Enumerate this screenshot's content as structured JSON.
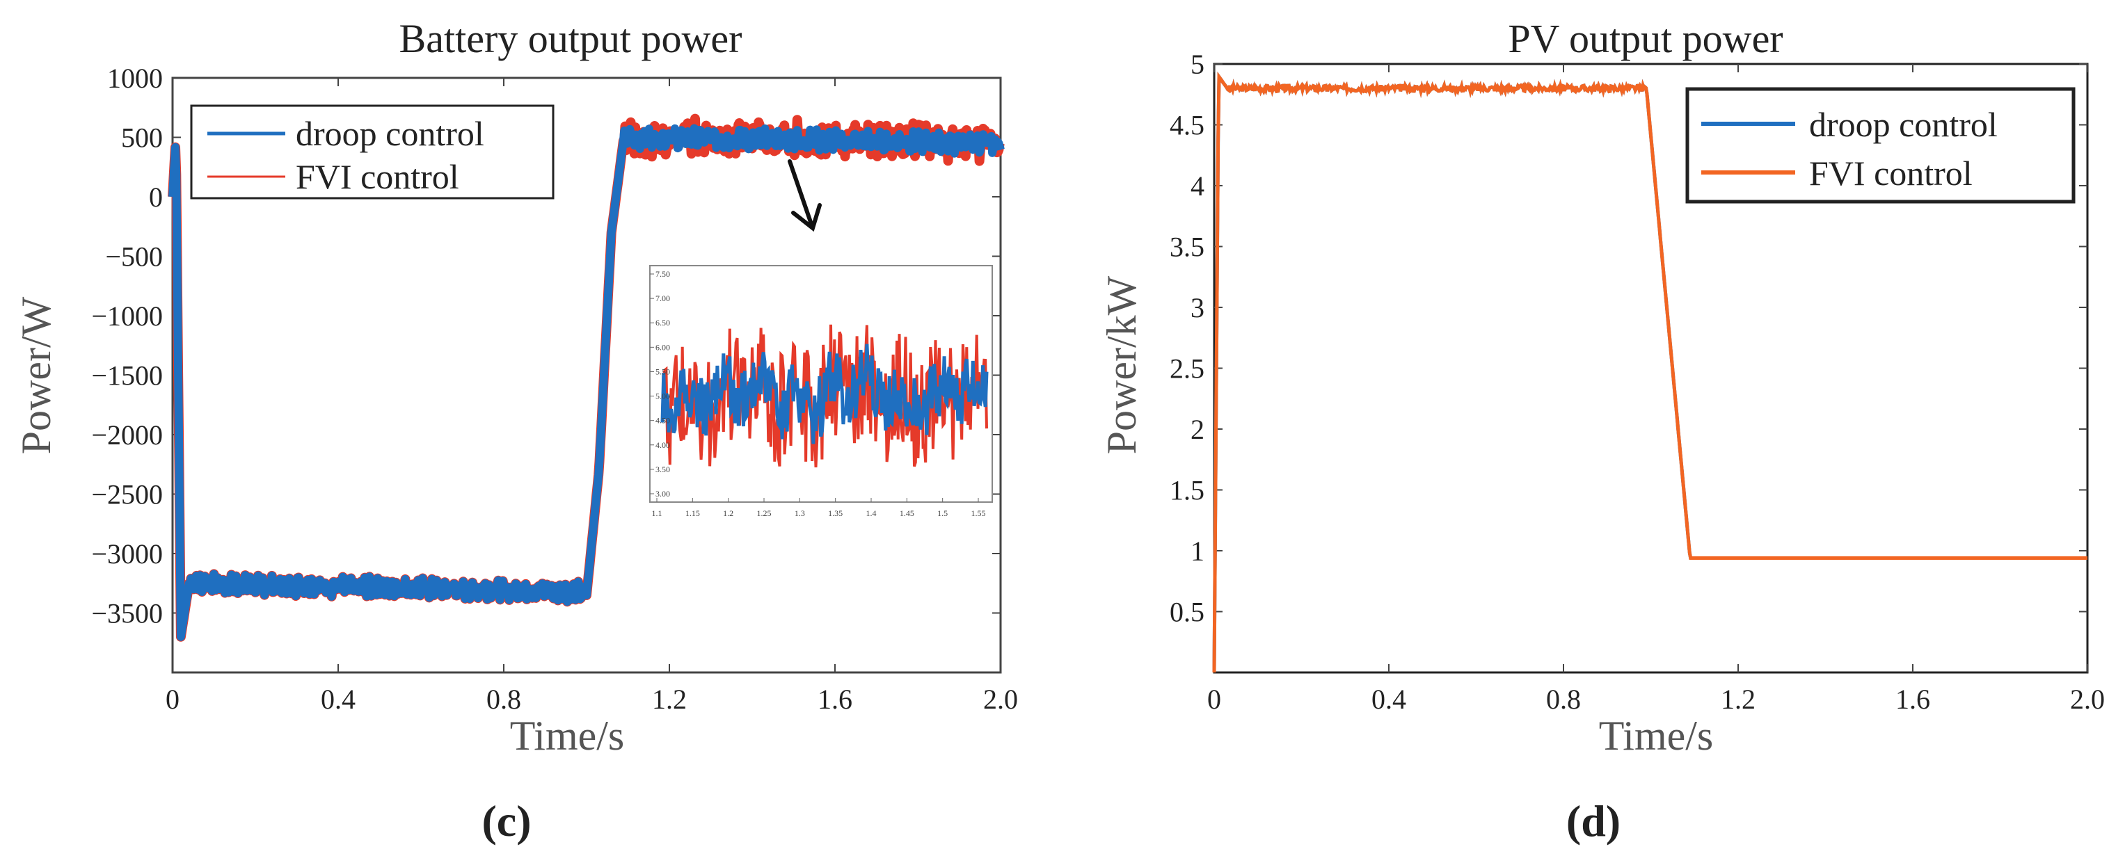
{
  "chart_data": [
    {
      "id": "c",
      "type": "line",
      "caption": "(c)",
      "caption_letter": "c",
      "title": "Battery output power",
      "xlabel": "Time/s",
      "ylabel": "Power/W",
      "xlim": [
        0,
        2.0
      ],
      "ylim": [
        -4000,
        1000
      ],
      "xticks": [
        0,
        0.4,
        0.8,
        1.2,
        1.6,
        2.0
      ],
      "xtick_labels": [
        "0",
        "0.4",
        "0.8",
        "1.2",
        "1.6",
        "2.0"
      ],
      "yticks": [
        1000,
        500,
        0,
        -500,
        -1000,
        -1500,
        -2000,
        -2500,
        -3000,
        -3500
      ],
      "ytick_labels": [
        "1000",
        "500",
        "0",
        "−500",
        "−1000",
        "−1500",
        "−2000",
        "−2500",
        "−3000",
        "−3500"
      ],
      "legend_location": "top-left",
      "series": [
        {
          "name": "droop control",
          "color": "#1f6fc0"
        },
        {
          "name": "FVI control",
          "color": "#e53a2a"
        }
      ],
      "profile": [
        {
          "t": 0.0,
          "p": 0
        },
        {
          "t": 0.008,
          "p": 500
        },
        {
          "t": 0.02,
          "p": -3700
        },
        {
          "t": 0.04,
          "p": -3250
        },
        {
          "t": 0.98,
          "p": -3320
        },
        {
          "t": 1.0,
          "p": -3350
        },
        {
          "t": 1.03,
          "p": -2300
        },
        {
          "t": 1.06,
          "p": -300
        },
        {
          "t": 1.09,
          "p": 500
        },
        {
          "t": 2.0,
          "p": 450
        }
      ],
      "inset": {
        "xticks": [
          "1.1",
          "1.15",
          "1.2",
          "1.25",
          "1.3",
          "1.35",
          "1.4",
          "1.45",
          "1.5",
          "1.55"
        ],
        "yticks": [
          "7.50",
          "7.00",
          "6.50",
          "6.00",
          "5.50",
          "5.00",
          "4.50",
          "4.00",
          "3.50",
          "3.00"
        ]
      }
    },
    {
      "id": "d",
      "type": "line",
      "caption": "(d)",
      "caption_letter": "d",
      "title": "PV output power",
      "xlabel": "Time/s",
      "ylabel": "Power/kW",
      "xlim": [
        0,
        2.0
      ],
      "ylim": [
        0,
        5
      ],
      "xticks": [
        0,
        0.4,
        0.8,
        1.2,
        1.6,
        2.0
      ],
      "xtick_labels": [
        "0",
        "0.4",
        "0.8",
        "1.2",
        "1.6",
        "2.0"
      ],
      "yticks": [
        5,
        4.5,
        4,
        3.5,
        3,
        2.5,
        2,
        1.5,
        1,
        0.5
      ],
      "ytick_labels": [
        "5",
        "4.5",
        "4",
        "3.5",
        "3",
        "2.5",
        "2",
        "1.5",
        "1",
        "0.5"
      ],
      "legend_location": "top-right",
      "series": [
        {
          "name": "droop control",
          "color": "#1f6fc0"
        },
        {
          "name": "FVI control",
          "color": "#f26522"
        }
      ],
      "profile": [
        {
          "t": 0.0,
          "p": 0
        },
        {
          "t": 0.01,
          "p": 4.9
        },
        {
          "t": 0.03,
          "p": 4.8
        },
        {
          "t": 0.99,
          "p": 4.8
        },
        {
          "t": 1.09,
          "p": 0.94
        },
        {
          "t": 2.0,
          "p": 0.94
        }
      ]
    }
  ]
}
